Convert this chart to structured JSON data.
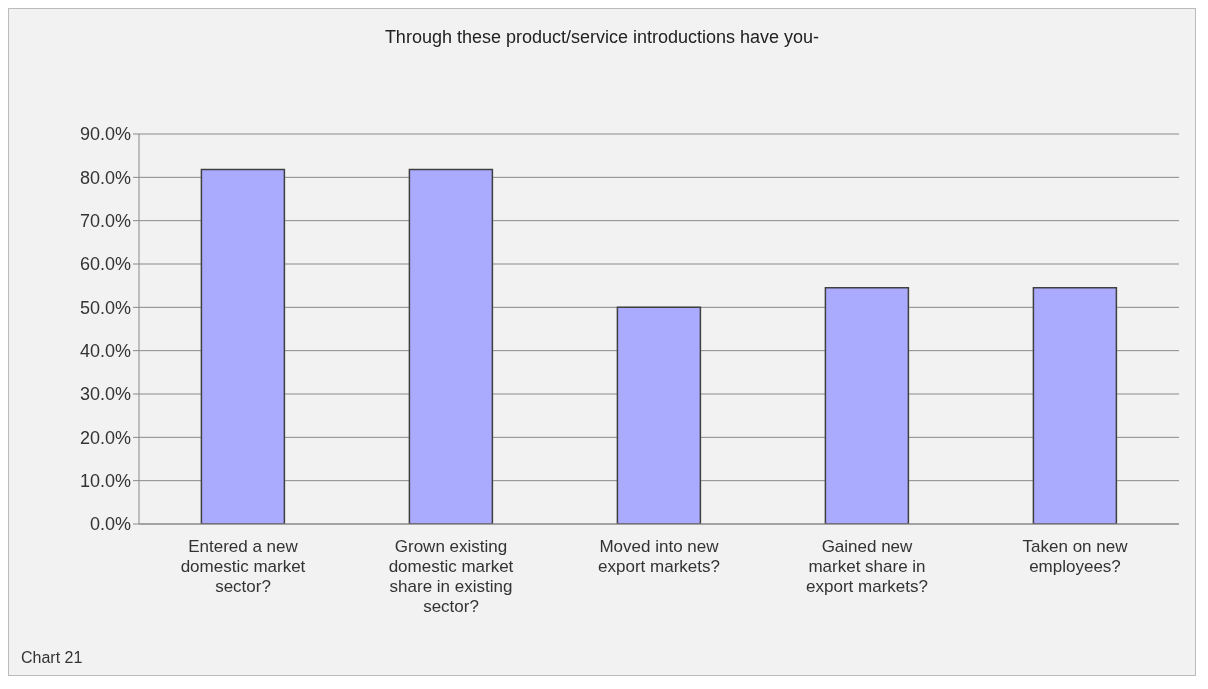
{
  "chart_data": {
    "type": "bar",
    "title": "Through these product/service introductions have you-",
    "categories": [
      "Entered a new\ndomestic market\nsector?",
      "Grown existing\ndomestic market\nshare in existing\nsector?",
      "Moved into new\nexport markets?",
      "Gained new\nmarket share in\nexport markets?",
      "Taken on new\nemployees?"
    ],
    "values": [
      81.8,
      81.8,
      50.0,
      54.5,
      54.5
    ],
    "color": "#aaaaff",
    "ylim": [
      0,
      90
    ],
    "yticks": [
      {
        "value": 0,
        "label": "0.0%"
      },
      {
        "value": 10,
        "label": "10.0%"
      },
      {
        "value": 20,
        "label": "20.0%"
      },
      {
        "value": 30,
        "label": "30.0%"
      },
      {
        "value": 40,
        "label": "40.0%"
      },
      {
        "value": 50,
        "label": "50.0%"
      },
      {
        "value": 60,
        "label": "60.0%"
      },
      {
        "value": 70,
        "label": "70.0%"
      },
      {
        "value": 80,
        "label": "80.0%"
      },
      {
        "value": 90,
        "label": "90.0%"
      }
    ],
    "grid": "y",
    "annotations": [
      "Chart 21"
    ]
  }
}
